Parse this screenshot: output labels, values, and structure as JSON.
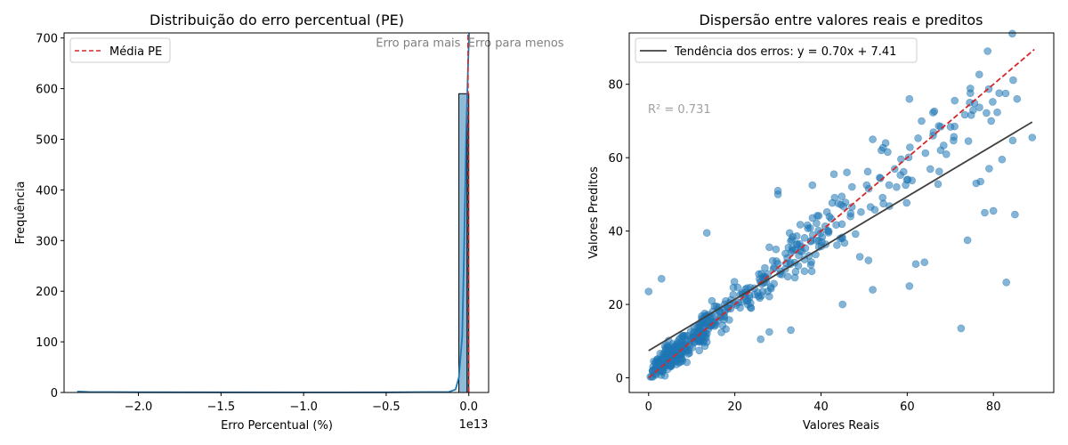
{
  "chart_data": [
    {
      "type": "bar",
      "title": "Distribuição do erro percentual (PE)",
      "xlabel": "Erro Percentual (%)",
      "ylabel": "Frequência",
      "x_offset_label": "1e13",
      "xlim": [
        -2.45,
        0.12
      ],
      "ylim": [
        0,
        710
      ],
      "xticks": [
        -2.0,
        -1.5,
        -1.0,
        -0.5,
        0.0
      ],
      "xtick_labels": [
        "−2.0",
        "−1.5",
        "−1.0",
        "−0.5",
        "0.0"
      ],
      "yticks": [
        0,
        100,
        200,
        300,
        400,
        500,
        600,
        700
      ],
      "bins": [
        {
          "x0": -0.06,
          "x1": -0.01,
          "count": 590
        },
        {
          "x0": -0.01,
          "x1": 0.0,
          "count": 590
        }
      ],
      "kde": {
        "x": [
          -2.37,
          -2.3,
          -2.0,
          -1.5,
          -1.0,
          -0.5,
          -0.12,
          -0.08,
          -0.06,
          -0.04,
          -0.03,
          -0.02,
          -0.015,
          -0.01,
          -0.005,
          0.0,
          0.002
        ],
        "y": [
          2,
          1,
          0.5,
          0.3,
          0.2,
          0.3,
          1,
          6,
          30,
          110,
          260,
          430,
          520,
          580,
          640,
          690,
          710
        ]
      },
      "mean_line": {
        "x": -0.005,
        "y_top": 710,
        "label": "Média PE",
        "color": "#d62728"
      },
      "annotations": [
        {
          "text": "Erro para mais",
          "x": -0.05,
          "y": 690,
          "anchor": "end"
        },
        {
          "text": "Erro para menos",
          "x": -0.005,
          "y": 690,
          "anchor": "start"
        }
      ],
      "legend": {
        "placement": "upper-left"
      },
      "bar_color": "#1f77b4",
      "line_color": "#1f77b4"
    },
    {
      "type": "scatter",
      "title": "Dispersão entre valores reais e preditos",
      "xlabel": "Valores Reais",
      "ylabel": "Valores Preditos",
      "xlim": [
        -4.5,
        94
      ],
      "ylim": [
        -4,
        94
      ],
      "xticks": [
        0,
        20,
        40,
        60,
        80
      ],
      "yticks": [
        0,
        20,
        40,
        60,
        80
      ],
      "trend": {
        "slope": 0.7,
        "intercept": 7.41,
        "x_range": [
          0,
          89
        ],
        "label": "Tendência dos erros: y = 0.70x + 7.41",
        "color": "#404040"
      },
      "identity": {
        "x_range": [
          0,
          89.5
        ],
        "color": "#d62728"
      },
      "r2_text": "R² = 0.731",
      "legend": {
        "placement": "upper-left"
      },
      "point_color": "#1f77b4",
      "n_points": 570,
      "outliers": [
        [
          0,
          23.5
        ],
        [
          60.5,
          76
        ],
        [
          85.5,
          76
        ],
        [
          74.5,
          75
        ],
        [
          89,
          65.5
        ],
        [
          83,
          26
        ],
        [
          72.5,
          13.5
        ],
        [
          85,
          44.5
        ],
        [
          78,
          45
        ],
        [
          80,
          45.5
        ],
        [
          74,
          37.5
        ],
        [
          64,
          31.5
        ],
        [
          62,
          31
        ],
        [
          60.5,
          25
        ],
        [
          52,
          65
        ],
        [
          55,
          64
        ],
        [
          54,
          62
        ],
        [
          66,
          66
        ],
        [
          71,
          68.5
        ],
        [
          77,
          53.5
        ],
        [
          76,
          53
        ],
        [
          82,
          59.5
        ],
        [
          79,
          57
        ],
        [
          3,
          27
        ],
        [
          13.5,
          39.5
        ],
        [
          33,
          13
        ],
        [
          26,
          10.5
        ],
        [
          28,
          12.5
        ],
        [
          49,
          33
        ],
        [
          52,
          24
        ],
        [
          51,
          32
        ],
        [
          45,
          20
        ],
        [
          30,
          50
        ],
        [
          30,
          51
        ],
        [
          38,
          52.5
        ],
        [
          43,
          55.5
        ],
        [
          46,
          56
        ]
      ]
    }
  ]
}
